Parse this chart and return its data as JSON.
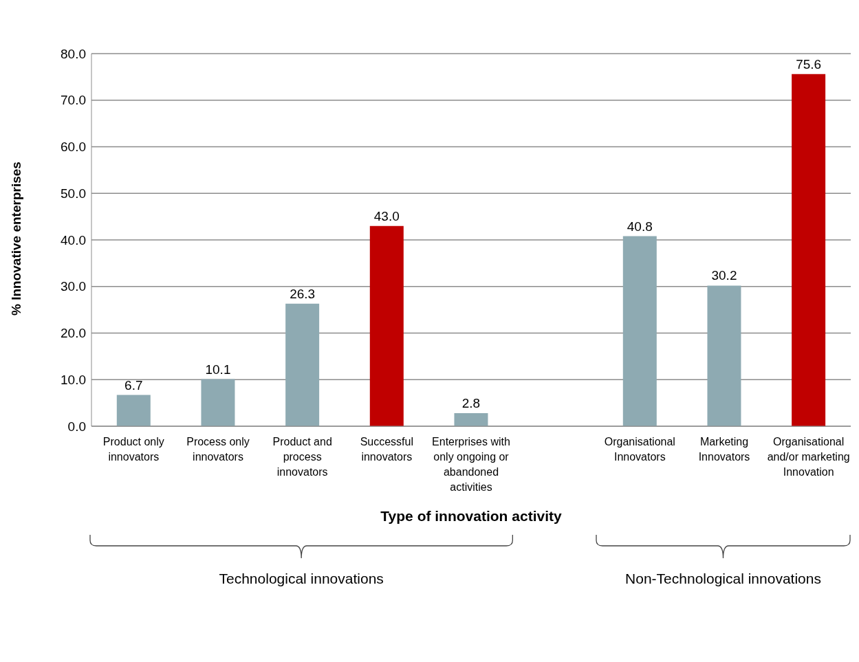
{
  "chart_data": {
    "type": "bar",
    "xlabel": "Type of innovation activity",
    "ylabel": "% Innovative enterprises",
    "categories": [
      "Product only innovators",
      "Process only innovators",
      "Product and process innovators",
      "Successful innovators",
      "Enterprises with only ongoing or abandoned activities",
      null,
      "Organisational Innovators",
      "Marketing Innovators",
      "Organisational and/or marketing Innovation"
    ],
    "values": [
      6.7,
      10.1,
      26.3,
      43.0,
      2.8,
      null,
      40.8,
      30.2,
      75.6
    ],
    "colors": [
      "#8eaab2",
      "#8eaab2",
      "#8eaab2",
      "#c00000",
      "#8eaab2",
      "#8eaab2",
      "#8eaab2",
      "#8eaab2",
      "#c00000"
    ],
    "value_labels": [
      "6.7",
      "10.1",
      "26.3",
      "43.0",
      "2.8",
      null,
      "40.8",
      "30.2",
      "75.6"
    ],
    "ylim": [
      0,
      80
    ],
    "yticks": [
      {
        "value": 0,
        "label": "0.0"
      },
      {
        "value": 10,
        "label": "10.0"
      },
      {
        "value": 20,
        "label": "20.0"
      },
      {
        "value": 30,
        "label": "30.0"
      },
      {
        "value": 40,
        "label": "40.0"
      },
      {
        "value": 50,
        "label": "50.0"
      },
      {
        "value": 60,
        "label": "60.0"
      },
      {
        "value": 70,
        "label": "70.0"
      },
      {
        "value": 80,
        "label": "80.0"
      }
    ],
    "grid": "y",
    "legend": false,
    "annotations": [
      "Technological innovations",
      "Non-Technological innovations"
    ]
  }
}
